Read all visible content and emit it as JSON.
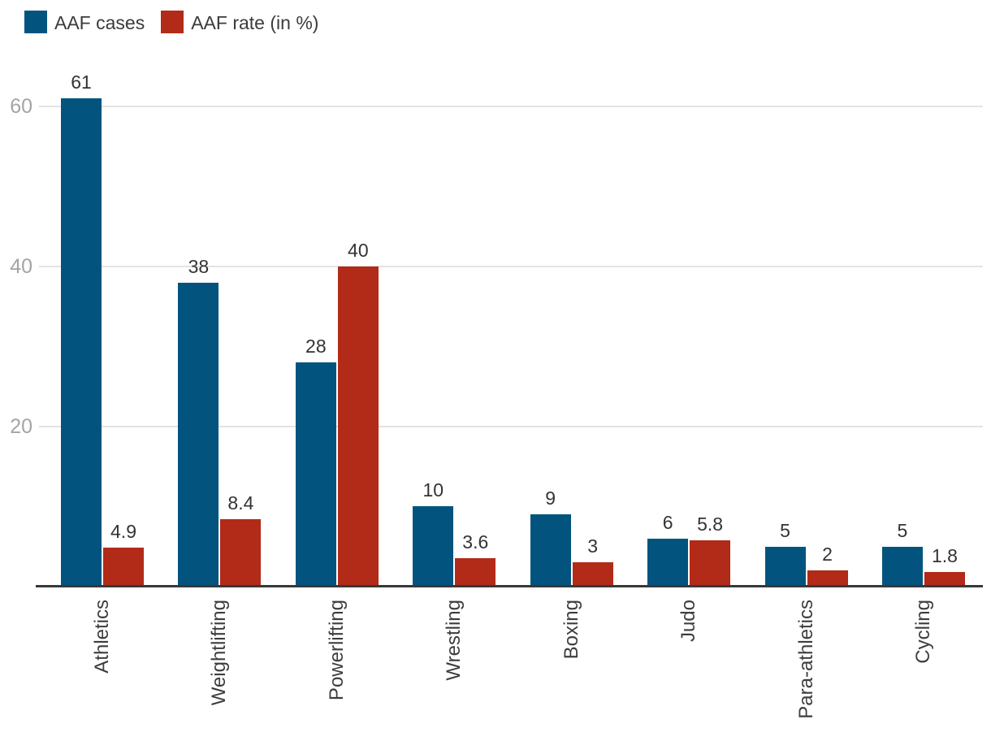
{
  "legend": {
    "items": [
      {
        "label": "AAF cases",
        "color": "#02547e"
      },
      {
        "label": "AAF rate (in %)",
        "color": "#b22a18"
      }
    ]
  },
  "colors": {
    "cases_series": "#02547e",
    "rate_series": "#b22a18",
    "gridline": "#e3e3e3",
    "axis_line": "#383838",
    "tick_label": "#a4a4a4",
    "value_label": "#333333",
    "category_label": "#3d3d3d",
    "background": "#ffffff"
  },
  "chart_data": {
    "type": "bar",
    "title": "",
    "xlabel": "",
    "ylabel": "",
    "categories": [
      "Athletics",
      "Weightlifting",
      "Powerlifting",
      "Wrestling",
      "Boxing",
      "Judo",
      "Para-athletics",
      "Cycling"
    ],
    "series": [
      {
        "name": "AAF cases",
        "color": "#02547e",
        "values": [
          61,
          38,
          28,
          10,
          9,
          6,
          5,
          5
        ]
      },
      {
        "name": "AAF rate (in %)",
        "color": "#b22a18",
        "values": [
          4.9,
          8.4,
          40,
          3.6,
          3,
          5.8,
          2,
          1.8
        ]
      }
    ],
    "value_labels": [
      [
        "61",
        "4.9"
      ],
      [
        "38",
        "8.4"
      ],
      [
        "28",
        "40"
      ],
      [
        "10",
        "3.6"
      ],
      [
        "9",
        "3"
      ],
      [
        "6",
        "5.8"
      ],
      [
        "5",
        "2"
      ],
      [
        "5",
        "1.8"
      ]
    ],
    "yticks": [
      20,
      40,
      60
    ],
    "ylim": [
      0,
      63.6
    ],
    "grid": true,
    "grid_orientation": "horizontal",
    "legend_position": "top-left",
    "x_tick_rotation_deg": 90
  }
}
